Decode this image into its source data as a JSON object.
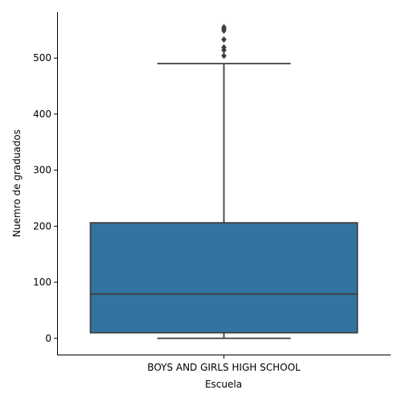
{
  "chart_data": {
    "type": "boxplot",
    "title": "",
    "xlabel": "Escuela",
    "ylabel": "Nuemro de graduados",
    "categories": [
      "BOYS AND GIRLS HIGH SCHOOL"
    ],
    "ylim": [
      -29,
      582
    ],
    "yticks": [
      0,
      100,
      200,
      300,
      400,
      500
    ],
    "grid": false,
    "boxes": [
      {
        "category": "BOYS AND GIRLS HIGH SCHOOL",
        "whisker_low": 0,
        "q1": 10,
        "median": 79,
        "q3": 206,
        "whisker_high": 490,
        "outliers": [
          504,
          514,
          519,
          533,
          549,
          552,
          555
        ]
      }
    ],
    "colors": {
      "box_fill": "#3274a1",
      "lines": "#3f3f3f",
      "axis": "#000000"
    }
  }
}
